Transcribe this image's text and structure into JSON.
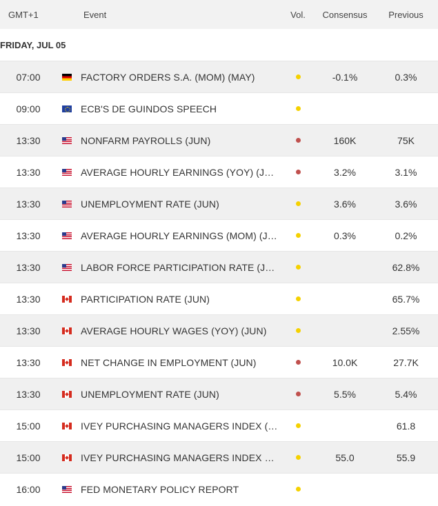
{
  "header": {
    "timezone": "GMT+1",
    "event": "Event",
    "vol": "Vol.",
    "consensus": "Consensus",
    "previous": "Previous"
  },
  "day_label": "FRIDAY, JUL 05",
  "colors": {
    "medium": "#f5d100",
    "high": "#c0504d"
  },
  "rows": [
    {
      "time": "07:00",
      "country": "de",
      "flag_icon": "germany-flag-icon",
      "event": "FACTORY ORDERS S.A. (MOM) (MAY)",
      "volatility": "medium",
      "consensus": "-0.1%",
      "previous": "0.3%"
    },
    {
      "time": "09:00",
      "country": "eu",
      "flag_icon": "eu-flag-icon",
      "event": "ECB'S DE GUINDOS SPEECH",
      "volatility": "medium",
      "consensus": "",
      "previous": ""
    },
    {
      "time": "13:30",
      "country": "us",
      "flag_icon": "us-flag-icon",
      "event": "NONFARM PAYROLLS (JUN)",
      "volatility": "high",
      "consensus": "160K",
      "previous": "75K"
    },
    {
      "time": "13:30",
      "country": "us",
      "flag_icon": "us-flag-icon",
      "event": "AVERAGE HOURLY EARNINGS (YOY) (JUN)",
      "volatility": "high",
      "consensus": "3.2%",
      "previous": "3.1%"
    },
    {
      "time": "13:30",
      "country": "us",
      "flag_icon": "us-flag-icon",
      "event": "UNEMPLOYMENT RATE (JUN)",
      "volatility": "medium",
      "consensus": "3.6%",
      "previous": "3.6%"
    },
    {
      "time": "13:30",
      "country": "us",
      "flag_icon": "us-flag-icon",
      "event": "AVERAGE HOURLY EARNINGS (MOM) (JUN)",
      "volatility": "medium",
      "consensus": "0.3%",
      "previous": "0.2%"
    },
    {
      "time": "13:30",
      "country": "us",
      "flag_icon": "us-flag-icon",
      "event": "LABOR FORCE PARTICIPATION RATE (JUN)",
      "volatility": "medium",
      "consensus": "",
      "previous": "62.8%"
    },
    {
      "time": "13:30",
      "country": "ca",
      "flag_icon": "canada-flag-icon",
      "event": "PARTICIPATION RATE (JUN)",
      "volatility": "medium",
      "consensus": "",
      "previous": "65.7%"
    },
    {
      "time": "13:30",
      "country": "ca",
      "flag_icon": "canada-flag-icon",
      "event": "AVERAGE HOURLY WAGES (YOY) (JUN)",
      "volatility": "medium",
      "consensus": "",
      "previous": "2.55%"
    },
    {
      "time": "13:30",
      "country": "ca",
      "flag_icon": "canada-flag-icon",
      "event": "NET CHANGE IN EMPLOYMENT (JUN)",
      "volatility": "high",
      "consensus": "10.0K",
      "previous": "27.7K"
    },
    {
      "time": "13:30",
      "country": "ca",
      "flag_icon": "canada-flag-icon",
      "event": "UNEMPLOYMENT RATE (JUN)",
      "volatility": "high",
      "consensus": "5.5%",
      "previous": "5.4%"
    },
    {
      "time": "15:00",
      "country": "ca",
      "flag_icon": "canada-flag-icon",
      "event": "IVEY PURCHASING MANAGERS INDEX (JU...",
      "volatility": "medium",
      "consensus": "",
      "previous": "61.8"
    },
    {
      "time": "15:00",
      "country": "ca",
      "flag_icon": "canada-flag-icon",
      "event": "IVEY PURCHASING MANAGERS INDEX S.A...",
      "volatility": "medium",
      "consensus": "55.0",
      "previous": "55.9"
    },
    {
      "time": "16:00",
      "country": "us",
      "flag_icon": "us-flag-icon",
      "event": "FED MONETARY POLICY REPORT",
      "volatility": "medium",
      "consensus": "",
      "previous": ""
    }
  ]
}
